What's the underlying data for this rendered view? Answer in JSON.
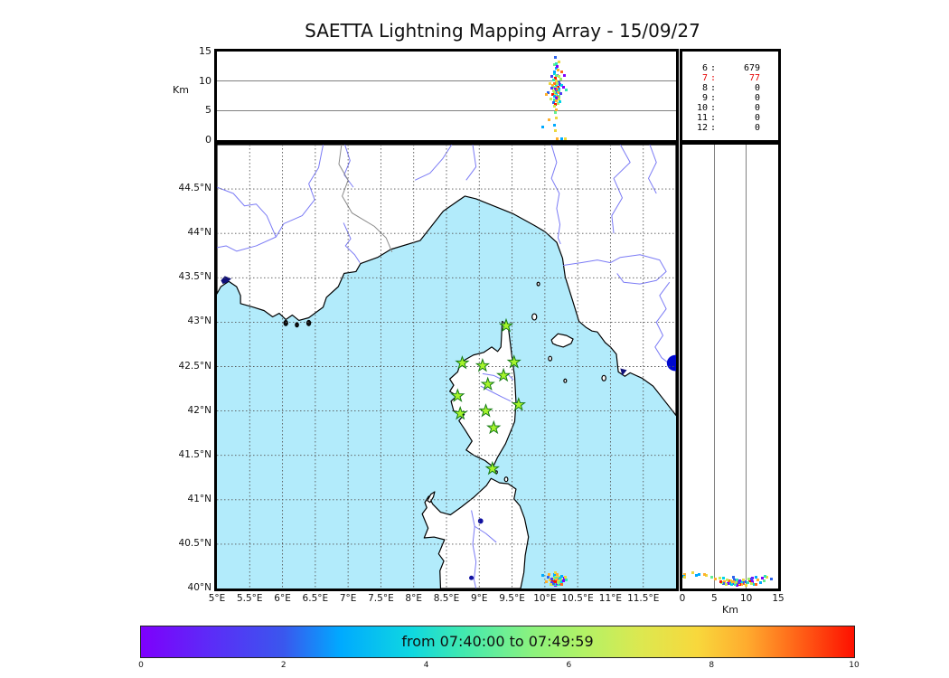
{
  "chart_data": {
    "type": "scatter",
    "title": "SAETTA Lightning Mapping Array - 15/09/27",
    "axis": {
      "alt_label_left": "Km",
      "alt_label_right": "Km"
    },
    "alt_axis": {
      "max": 15,
      "ticks": [
        0,
        5,
        10,
        15
      ],
      "grid": [
        5,
        10
      ]
    },
    "map": {
      "lon_range": [
        5,
        12
      ],
      "lat_range": [
        40,
        45
      ],
      "lon_ticks": [
        {
          "v": 5,
          "label": "5°E"
        },
        {
          "v": 5.5,
          "label": "5.5°E"
        },
        {
          "v": 6,
          "label": "6°E"
        },
        {
          "v": 6.5,
          "label": "6.5°E"
        },
        {
          "v": 7,
          "label": "7°E"
        },
        {
          "v": 7.5,
          "label": "7.5°E"
        },
        {
          "v": 8,
          "label": "8°E"
        },
        {
          "v": 8.5,
          "label": "8.5°E"
        },
        {
          "v": 9,
          "label": "9°E"
        },
        {
          "v": 9.5,
          "label": "9.5°E"
        },
        {
          "v": 10,
          "label": "10°E"
        },
        {
          "v": 10.5,
          "label": "10.5°E"
        },
        {
          "v": 11,
          "label": "11°E"
        },
        {
          "v": 11.5,
          "label": "11.5°E"
        }
      ],
      "lat_ticks": [
        {
          "v": 44.5,
          "label": "44.5°N"
        },
        {
          "v": 44,
          "label": "44°N"
        },
        {
          "v": 43.5,
          "label": "43.5°N"
        },
        {
          "v": 43,
          "label": "43°N"
        },
        {
          "v": 42.5,
          "label": "42.5°N"
        },
        {
          "v": 42,
          "label": "42°N"
        },
        {
          "v": 41.5,
          "label": "41.5°N"
        },
        {
          "v": 41,
          "label": "41°N"
        },
        {
          "v": 40.5,
          "label": "40.5°N"
        },
        {
          "v": 40,
          "label": "40°N"
        }
      ]
    },
    "legend_counts": {
      "rows": [
        {
          "level": "6",
          "value": "679",
          "color": "#000000"
        },
        {
          "level": "7",
          "value": "77",
          "color": "#e60000"
        },
        {
          "level": "8",
          "value": "0",
          "color": "#000000"
        },
        {
          "level": "9",
          "value": "0",
          "color": "#000000"
        },
        {
          "level": "10",
          "value": "0",
          "color": "#000000"
        },
        {
          "level": "11",
          "value": "0",
          "color": "#000000"
        },
        {
          "level": "12",
          "value": "0",
          "color": "#000000"
        }
      ]
    },
    "colorbar": {
      "label": "from 07:40:00 to 07:49:59",
      "ticks": [
        0,
        2,
        4,
        6,
        8,
        10
      ],
      "range": [
        0,
        10
      ],
      "stops": [
        {
          "p": 0,
          "c": "#7e00fc"
        },
        {
          "p": 10,
          "c": "#5b2df7"
        },
        {
          "p": 20,
          "c": "#3a57ee"
        },
        {
          "p": 28,
          "c": "#00aaff"
        },
        {
          "p": 38,
          "c": "#0fd8e0"
        },
        {
          "p": 45,
          "c": "#40e8b0"
        },
        {
          "p": 50,
          "c": "#66ee99"
        },
        {
          "p": 55,
          "c": "#8cf27d"
        },
        {
          "p": 62,
          "c": "#b2f266"
        },
        {
          "p": 70,
          "c": "#dce850"
        },
        {
          "p": 78,
          "c": "#f8d83c"
        },
        {
          "p": 85,
          "c": "#ffab2e"
        },
        {
          "p": 92,
          "c": "#ff6418"
        },
        {
          "p": 100,
          "c": "#fe1000"
        }
      ]
    },
    "palette": [
      "#8000ff",
      "#4d3df2",
      "#2e64ec",
      "#00aaff",
      "#00d4e8",
      "#2ee6b4",
      "#62ef91",
      "#9af06e",
      "#c8ea52",
      "#ecd83e",
      "#ffb02c",
      "#ff6a1a",
      "#fb1500"
    ],
    "station_style": {
      "fill": "#a6f42c",
      "stroke": "#157a15"
    },
    "stations": [
      [
        9.41,
        42.96
      ],
      [
        8.74,
        42.54
      ],
      [
        9.05,
        42.51
      ],
      [
        9.53,
        42.55
      ],
      [
        9.37,
        42.4
      ],
      [
        9.13,
        42.3
      ],
      [
        8.67,
        42.17
      ],
      [
        9.6,
        42.07
      ],
      [
        9.1,
        42.0
      ],
      [
        8.71,
        41.97
      ],
      [
        9.22,
        41.81
      ],
      [
        9.2,
        41.35
      ]
    ],
    "points": [
      [
        10.14,
        40.09,
        12.8,
        6
      ],
      [
        10.17,
        40.07,
        12.2,
        3
      ],
      [
        10.2,
        40.1,
        11.8,
        10
      ],
      [
        10.15,
        40.05,
        11.2,
        4
      ],
      [
        10.19,
        40.08,
        11.0,
        0
      ],
      [
        10.22,
        40.06,
        10.8,
        8
      ],
      [
        10.16,
        40.09,
        10.5,
        12
      ],
      [
        10.13,
        40.07,
        10.2,
        5
      ],
      [
        10.18,
        40.04,
        10.0,
        9
      ],
      [
        10.21,
        40.08,
        9.8,
        2
      ],
      [
        10.15,
        40.06,
        9.6,
        11
      ],
      [
        10.19,
        40.1,
        9.5,
        7
      ],
      [
        10.23,
        40.07,
        9.4,
        1
      ],
      [
        10.12,
        40.05,
        9.2,
        10
      ],
      [
        10.17,
        40.08,
        9.1,
        4
      ],
      [
        10.2,
        40.05,
        9.0,
        12
      ],
      [
        10.14,
        40.09,
        8.9,
        6
      ],
      [
        10.18,
        40.06,
        8.8,
        9
      ],
      [
        10.22,
        40.09,
        8.7,
        3
      ],
      [
        10.16,
        40.04,
        8.6,
        0
      ],
      [
        10.19,
        40.07,
        8.5,
        11
      ],
      [
        10.13,
        40.08,
        8.4,
        8
      ],
      [
        10.21,
        40.05,
        8.3,
        5
      ],
      [
        10.17,
        40.1,
        8.2,
        2
      ],
      [
        10.15,
        40.07,
        8.1,
        7
      ],
      [
        10.2,
        40.08,
        8.0,
        10
      ],
      [
        10.24,
        40.06,
        7.9,
        1
      ],
      [
        10.12,
        40.08,
        7.8,
        12
      ],
      [
        10.18,
        40.05,
        7.7,
        4
      ],
      [
        10.16,
        40.09,
        7.6,
        9
      ],
      [
        10.22,
        40.07,
        7.5,
        6
      ],
      [
        10.14,
        40.06,
        7.4,
        3
      ],
      [
        10.19,
        40.09,
        7.3,
        11
      ],
      [
        10.17,
        40.06,
        7.2,
        0
      ],
      [
        10.21,
        40.1,
        7.0,
        8
      ],
      [
        10.15,
        40.05,
        6.8,
        5
      ],
      [
        10.18,
        40.08,
        6.6,
        10
      ],
      [
        10.13,
        40.06,
        6.4,
        2
      ],
      [
        10.2,
        40.07,
        6.2,
        7
      ],
      [
        10.16,
        40.08,
        6.0,
        12
      ],
      [
        10.25,
        40.08,
        9.3,
        4
      ],
      [
        10.28,
        40.09,
        9.0,
        0
      ],
      [
        10.1,
        40.07,
        8.8,
        1
      ],
      [
        10.08,
        40.1,
        9.5,
        9
      ],
      [
        10.17,
        40.12,
        10.9,
        6
      ],
      [
        10.19,
        40.12,
        12.5,
        0
      ],
      [
        10.15,
        40.13,
        11.5,
        3
      ],
      [
        10.21,
        40.13,
        13.2,
        9
      ],
      [
        10.18,
        40.14,
        12.9,
        5
      ],
      [
        10.16,
        40.11,
        14.0,
        2
      ],
      [
        10.14,
        40.12,
        5.8,
        8
      ],
      [
        10.18,
        40.11,
        5.2,
        10
      ],
      [
        10.16,
        40.13,
        4.6,
        6
      ],
      [
        10.17,
        40.15,
        3.8,
        9
      ],
      [
        10.15,
        40.16,
        2.6,
        3
      ],
      [
        10.16,
        40.18,
        1.6,
        9
      ],
      [
        10.3,
        40.12,
        11.0,
        0
      ],
      [
        10.05,
        40.13,
        8.0,
        2
      ],
      [
        10.33,
        40.1,
        8.5,
        5
      ],
      [
        10.02,
        40.08,
        7.8,
        10
      ],
      [
        9.97,
        40.15,
        2.2,
        3
      ],
      [
        10.06,
        40.16,
        3.5,
        10
      ],
      [
        10.24,
        40.11,
        10.4,
        7
      ],
      [
        10.26,
        40.05,
        11.5,
        11
      ],
      [
        10.11,
        40.11,
        10.8,
        1
      ],
      [
        10.09,
        40.05,
        6.9,
        8
      ],
      [
        10.23,
        40.12,
        6.5,
        4
      ],
      [
        10.19,
        40.16,
        0.3,
        10
      ],
      [
        10.26,
        40.14,
        0.2,
        3
      ],
      [
        10.31,
        40.13,
        0.3,
        9
      ]
    ]
  }
}
